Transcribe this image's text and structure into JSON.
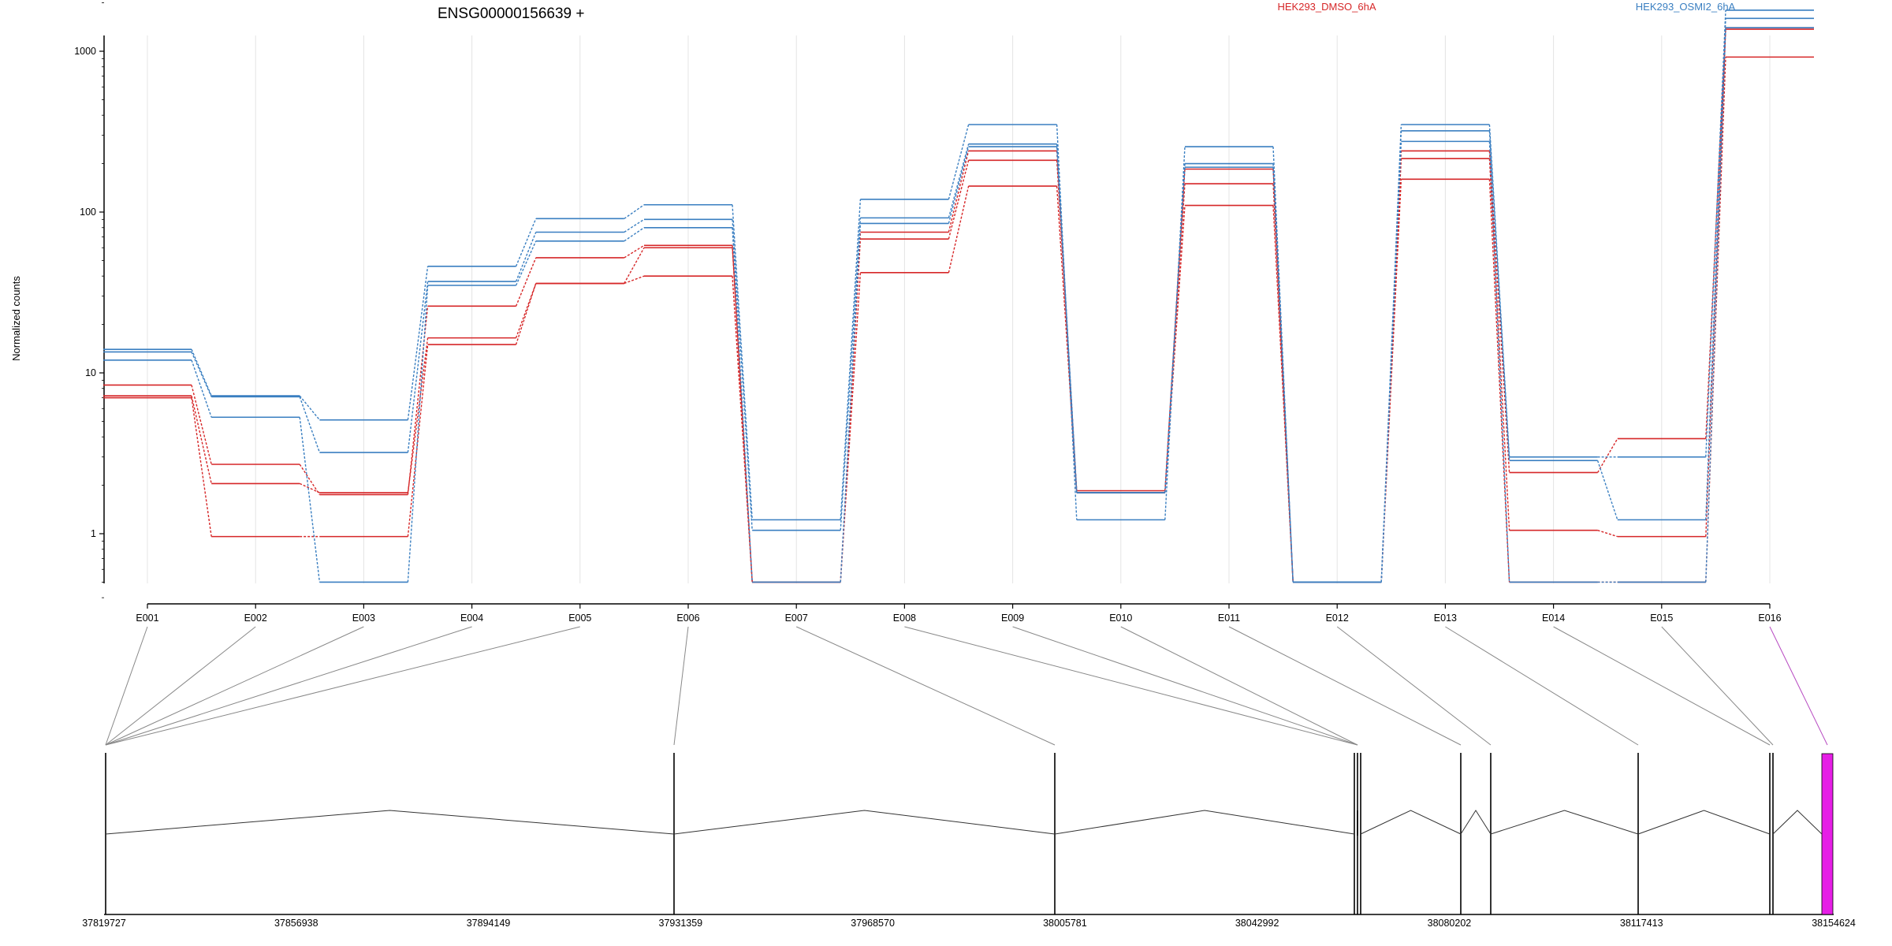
{
  "chart_data": [
    {
      "type": "line",
      "title": "ENSG00000156639 +",
      "ylabel": "Normalized counts",
      "xlabel": "",
      "y_scale": "log",
      "ylim": [
        0.4,
        2500
      ],
      "y_ticks": [
        1,
        10,
        100,
        1000
      ],
      "y_tick_labels": [
        "1",
        "10",
        "100",
        "1000"
      ],
      "grid": "vertical lines at exon ticks",
      "legend_position": "top",
      "categories": [
        "E001",
        "E002",
        "E003",
        "E004",
        "E005",
        "E006",
        "E007",
        "E008",
        "E009",
        "E010",
        "E011",
        "E012",
        "E013",
        "E014",
        "E015",
        "E016"
      ],
      "groups": [
        {
          "name": "HEK293_DMSO_6hA",
          "color": "#d62728"
        },
        {
          "name": "HEK293_OSMI2_6hA",
          "color": "#3a7fc1"
        }
      ],
      "series": [
        {
          "group": "HEK293_DMSO_6hA",
          "values": [
            8.4,
            2.7,
            1.75,
            26,
            52,
            62,
            0.5,
            75,
            240,
            1.85,
            185,
            0.5,
            240,
            2.4,
            3.9,
            1400
          ]
        },
        {
          "group": "HEK293_DMSO_6hA",
          "values": [
            7.2,
            2.05,
            1.8,
            16.5,
            36,
            60,
            0.5,
            68,
            210,
            1.8,
            150,
            0.5,
            215,
            1.05,
            0.96,
            1370
          ]
        },
        {
          "group": "HEK293_DMSO_6hA",
          "values": [
            7.0,
            0.96,
            0.96,
            15,
            36,
            40,
            0.5,
            42,
            145,
            1.8,
            110,
            0.5,
            160,
            0.5,
            0.5,
            920
          ]
        },
        {
          "group": "HEK293_OSMI2_6hA",
          "values": [
            14,
            7.2,
            5.1,
            46,
            91,
            111,
            1.22,
            120,
            350,
            1.22,
            255,
            0.5,
            350,
            3.0,
            3.0,
            1800
          ]
        },
        {
          "group": "HEK293_OSMI2_6hA",
          "values": [
            13.5,
            7.1,
            3.2,
            37,
            75,
            90,
            1.05,
            92,
            265,
            1.8,
            200,
            0.5,
            320,
            2.85,
            1.22,
            1600
          ]
        },
        {
          "group": "HEK293_OSMI2_6hA",
          "values": [
            12,
            5.3,
            0.5,
            35,
            66,
            80,
            0.5,
            85,
            255,
            1.8,
            190,
            0.5,
            275,
            0.5,
            0.5,
            1400
          ]
        }
      ]
    },
    {
      "type": "gene-model",
      "x_tick_labels": [
        "37819727",
        "37856938",
        "37894149",
        "37931359",
        "37968570",
        "38005781",
        "38042992",
        "38080202",
        "38117413",
        "38154624"
      ],
      "exon_colors": {
        "normal": "#000000",
        "highlighted": "#e61ee6",
        "connector": "#888888",
        "highlight_connector": "#b84cc2"
      }
    }
  ]
}
